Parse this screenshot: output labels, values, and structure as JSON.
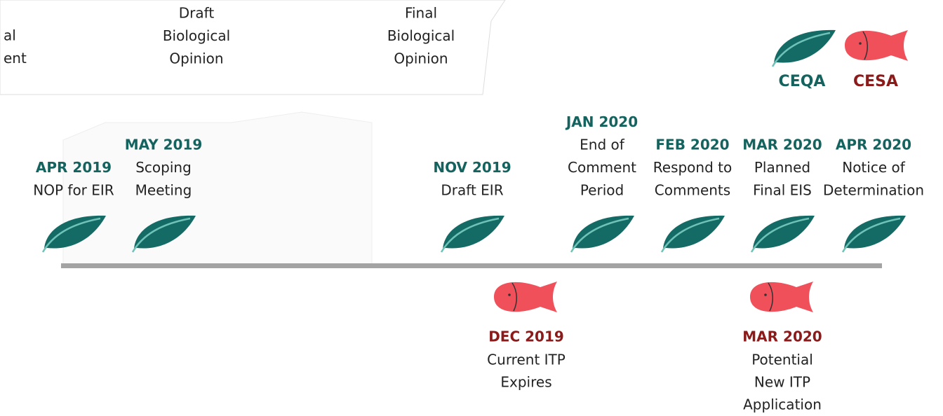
{
  "top_panel": {
    "columns": [
      {
        "lines": [
          "al",
          "ent"
        ]
      },
      {
        "lines": [
          "Draft",
          "Biological",
          "Opinion"
        ]
      },
      {
        "lines": [
          "Final",
          "Biological",
          "Opinion"
        ]
      }
    ]
  },
  "legend": [
    {
      "label": "CEQA"
    },
    {
      "label": "CESA"
    }
  ],
  "ceqa_events": [
    {
      "date": "APR 2019",
      "lines": [
        "NOP for EIR"
      ]
    },
    {
      "date": "MAY 2019",
      "lines": [
        "Scoping",
        "Meeting"
      ]
    },
    {
      "date": "NOV 2019",
      "lines": [
        "Draft EIR"
      ]
    },
    {
      "date": "JAN 2020",
      "lines": [
        "End of",
        "Comment",
        "Period"
      ]
    },
    {
      "date": "FEB 2020",
      "lines": [
        "Respond to",
        "Comments"
      ]
    },
    {
      "date": "MAR 2020",
      "lines": [
        "Planned",
        "Final EIS"
      ]
    },
    {
      "date": "APR 2020",
      "lines": [
        "Notice of",
        "Determination"
      ]
    }
  ],
  "cesa_events": [
    {
      "date": "DEC 2019",
      "lines": [
        "Current ITP",
        "Expires"
      ]
    },
    {
      "date": "MAR 2020",
      "lines": [
        "Potential",
        "New ITP",
        "Application"
      ]
    }
  ]
}
